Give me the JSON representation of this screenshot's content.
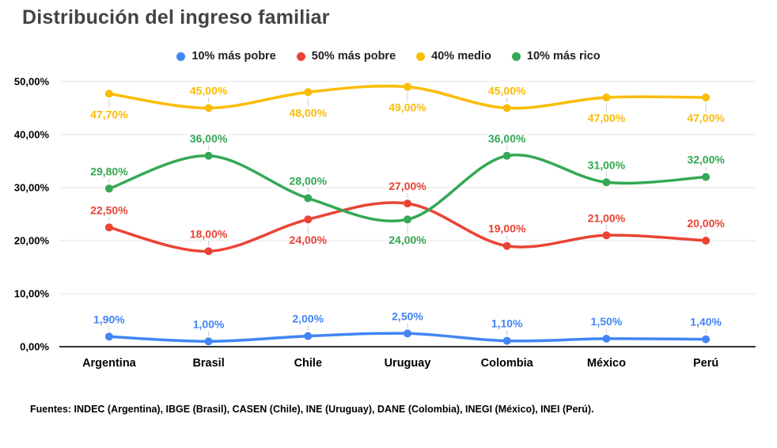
{
  "title": "Distribución del ingreso familiar",
  "footer": "Fuentes: INDEC (Argentina), IBGE (Brasil), CASEN (Chile), INE (Uruguay), DANE (Colombia), INEGI (México), INEI (Perú).",
  "colors": {
    "background": "#ffffff",
    "title_text": "#434343",
    "gridline": "#e6e6e6",
    "axis_line": "#333333",
    "leader_line": "#cccccc"
  },
  "chart_data": {
    "type": "line",
    "smooth": true,
    "grid": true,
    "legend_position": "top",
    "title": "Distribución del ingreso familiar",
    "xlabel": "",
    "ylabel": "",
    "ylim": [
      0,
      50
    ],
    "categories": [
      "Argentina",
      "Brasil",
      "Chile",
      "Uruguay",
      "Colombia",
      "México",
      "Perú"
    ],
    "y_axis": {
      "tick_values": [
        0,
        10,
        20,
        30,
        40,
        50
      ],
      "tick_labels": [
        "0,00%",
        "10,00%",
        "20,00%",
        "30,00%",
        "40,00%",
        "50,00%"
      ]
    },
    "series": [
      {
        "name": "10% más pobre",
        "color": "#4285F4",
        "values": [
          1.9,
          1.0,
          2.0,
          2.5,
          1.1,
          1.5,
          1.4
        ],
        "labels": [
          "1,90%",
          "1,00%",
          "2,00%",
          "2,50%",
          "1,10%",
          "1,50%",
          "1,40%"
        ],
        "label_positions": [
          "above",
          "above",
          "above",
          "above",
          "above",
          "above",
          "above"
        ]
      },
      {
        "name": "50% más pobre",
        "color": "#EA4335",
        "values": [
          22.5,
          18.0,
          24.0,
          27.0,
          19.0,
          21.0,
          20.0
        ],
        "labels": [
          "22,50%",
          "18,00%",
          "24,00%",
          "27,00%",
          "19,00%",
          "21,00%",
          "20,00%"
        ],
        "label_positions": [
          "above",
          "above",
          "below",
          "above",
          "above",
          "above",
          "above"
        ]
      },
      {
        "name": "40% medio",
        "color": "#FBBC04",
        "values": [
          47.7,
          45.0,
          48.0,
          49.0,
          45.0,
          47.0,
          47.0
        ],
        "labels": [
          "47,70%",
          "45,00%",
          "48,00%",
          "49,00%",
          "45,00%",
          "47,00%",
          "47,00%"
        ],
        "label_positions": [
          "below",
          "above",
          "below",
          "below",
          "above",
          "below",
          "below"
        ]
      },
      {
        "name": "10% más rico",
        "color": "#34A853",
        "values": [
          29.8,
          36.0,
          28.0,
          24.0,
          36.0,
          31.0,
          32.0
        ],
        "labels": [
          "29,80%",
          "36,00%",
          "28,00%",
          "24,00%",
          "36,00%",
          "31,00%",
          "32,00%"
        ],
        "label_positions": [
          "above",
          "above",
          "above",
          "below",
          "above",
          "above",
          "above"
        ]
      }
    ]
  }
}
